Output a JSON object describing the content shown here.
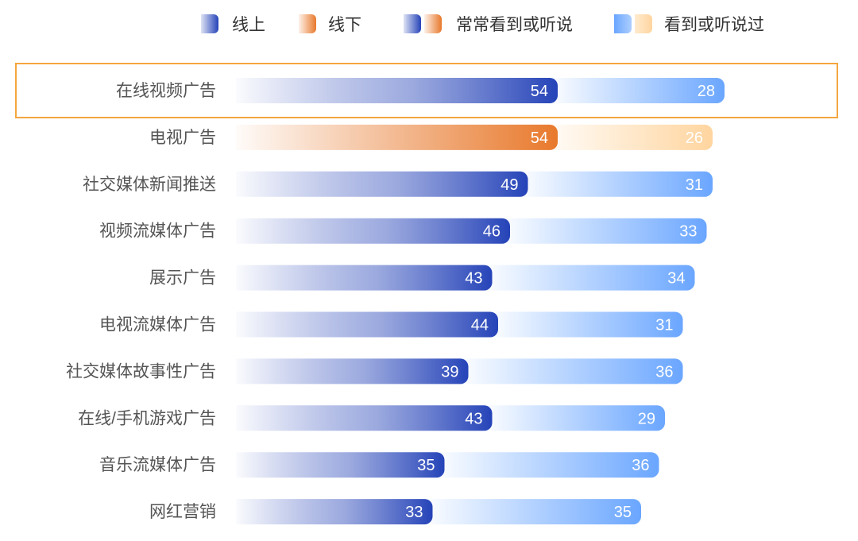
{
  "chart_data": {
    "type": "bar",
    "stacked": true,
    "orientation": "horizontal",
    "categories": [
      "在线视频广告",
      "电视广告",
      "社交媒体新闻推送",
      "视频流媒体广告",
      "展示广告",
      "电视流媒体广告",
      "社交媒体故事性广告",
      "在线/手机游戏广告",
      "音乐流媒体广告",
      "网红营销"
    ],
    "channel": [
      "线上",
      "线下",
      "线上",
      "线上",
      "线上",
      "线上",
      "线上",
      "线上",
      "线上",
      "线上"
    ],
    "series": [
      {
        "name": "常常看到或听说",
        "values": [
          54,
          54,
          49,
          46,
          43,
          44,
          39,
          43,
          35,
          33
        ]
      },
      {
        "name": "看到或听说过",
        "values": [
          28,
          26,
          31,
          33,
          34,
          31,
          36,
          29,
          36,
          35
        ]
      }
    ],
    "legend": {
      "position": "top",
      "items": [
        {
          "key": "online",
          "label": "线上"
        },
        {
          "key": "offline",
          "label": "线下"
        },
        {
          "key": "frequent",
          "label": "常常看到或听说"
        },
        {
          "key": "seen",
          "label": "看到或听说过"
        }
      ]
    },
    "highlighted_category": "在线视频广告",
    "xlim": [
      0,
      82
    ],
    "colors": {
      "online_strong": "#2543b8",
      "online_light": "#6aa6ff",
      "offline_strong": "#e8792c",
      "offline_light": "#ffd59f",
      "highlight_border": "#f4a640",
      "label_text": "#555555",
      "value_text": "#ffffff"
    }
  }
}
